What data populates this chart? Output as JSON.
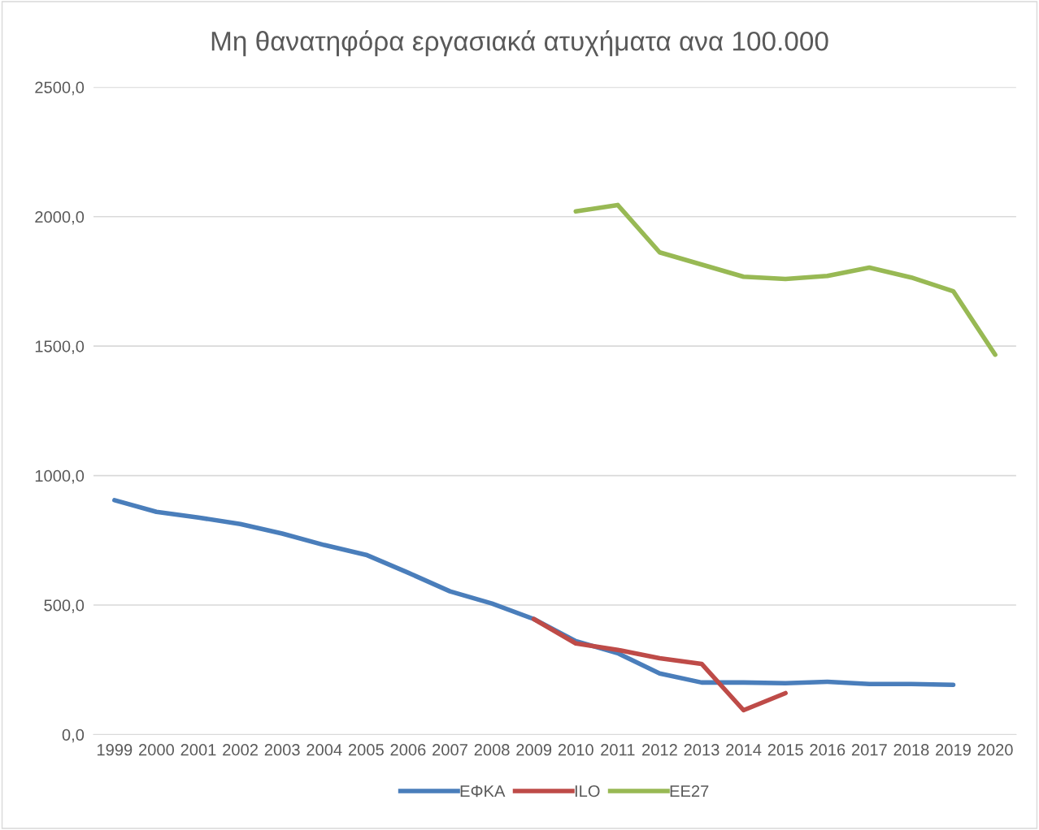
{
  "chart_data": {
    "type": "line",
    "title": "Μη θανατηφόρα εργασιακά ατυχήματα ανα 100.000",
    "categories": [
      "1999",
      "2000",
      "2001",
      "2002",
      "2003",
      "2004",
      "2005",
      "2006",
      "2007",
      "2008",
      "2009",
      "2010",
      "2011",
      "2012",
      "2013",
      "2014",
      "2015",
      "2016",
      "2017",
      "2018",
      "2019",
      "2020"
    ],
    "series": [
      {
        "name": "ΕΦΚΑ",
        "color": "#4a7ebb",
        "values": [
          905,
          860,
          838,
          813,
          776,
          732,
          694,
          625,
          553,
          506,
          446,
          361,
          314,
          236,
          201,
          201,
          198,
          204,
          195,
          195,
          192,
          null
        ]
      },
      {
        "name": "ILO",
        "color": "#be4b48",
        "values": [
          null,
          null,
          null,
          null,
          null,
          null,
          null,
          null,
          null,
          null,
          446,
          352,
          327,
          295,
          273,
          94,
          160,
          null,
          null,
          null,
          null,
          null
        ]
      },
      {
        "name": "ΕΕ27",
        "color": "#98b954",
        "values": [
          null,
          null,
          null,
          null,
          null,
          null,
          null,
          null,
          null,
          null,
          null,
          2020,
          2045,
          1862,
          1815,
          1768,
          1759,
          1771,
          1803,
          1765,
          1712,
          1467
        ]
      }
    ],
    "ylim": [
      0,
      2500
    ],
    "yticks": [
      {
        "value": 0,
        "label": "0,0"
      },
      {
        "value": 500,
        "label": "500,0"
      },
      {
        "value": 1000,
        "label": "1000,0"
      },
      {
        "value": 1500,
        "label": "1500,0"
      },
      {
        "value": 2000,
        "label": "2000,0"
      },
      {
        "value": 2500,
        "label": "2500,0"
      }
    ],
    "grid": "y",
    "legend": "bottom",
    "marker": "none",
    "line_style": "solid"
  }
}
